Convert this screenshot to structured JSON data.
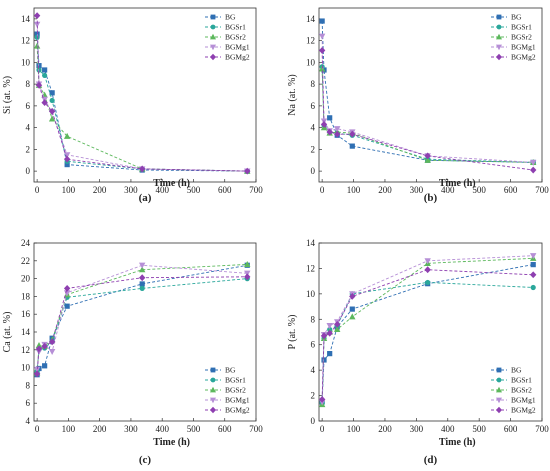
{
  "figure": {
    "panels": [
      {
        "id": "a",
        "label": "(a)"
      },
      {
        "id": "b",
        "label": "(b)"
      },
      {
        "id": "c",
        "label": "(c)"
      },
      {
        "id": "d",
        "label": "(d)"
      }
    ]
  },
  "chart_data": [
    {
      "type": "line",
      "panel": "(a)",
      "xlabel": "Time (h)",
      "ylabel": "Si (at. %)",
      "xlim": [
        -10,
        700
      ],
      "ylim": [
        -1,
        15
      ],
      "xticks": [
        0,
        100,
        200,
        300,
        400,
        500,
        600,
        700
      ],
      "yticks": [
        0,
        2,
        4,
        6,
        8,
        10,
        12,
        14
      ],
      "legend_position": "top-right",
      "grid": false,
      "series": [
        {
          "name": "BG",
          "color": "#2f6fb3",
          "marker": "square",
          "points": [
            [
              0,
              12.6
            ],
            [
              6,
              9.7
            ],
            [
              24,
              9.3
            ],
            [
              48,
              7.2
            ],
            [
              96,
              0.6
            ],
            [
              336,
              0.1
            ],
            [
              672,
              0.0
            ]
          ]
        },
        {
          "name": "BGSr1",
          "color": "#2aa79b",
          "marker": "circle",
          "points": [
            [
              0,
              12.3
            ],
            [
              6,
              9.3
            ],
            [
              24,
              8.8
            ],
            [
              48,
              6.5
            ],
            [
              96,
              0.9
            ],
            [
              336,
              0.2
            ],
            [
              672,
              0.0
            ]
          ]
        },
        {
          "name": "BGSr2",
          "color": "#5cb85c",
          "marker": "triangle-up",
          "points": [
            [
              0,
              11.5
            ],
            [
              6,
              7.9
            ],
            [
              24,
              7.0
            ],
            [
              48,
              4.8
            ],
            [
              96,
              3.2
            ],
            [
              336,
              0.2
            ],
            [
              672,
              0.0
            ]
          ]
        },
        {
          "name": "BGMg1",
          "color": "#b68fd6",
          "marker": "triangle-down",
          "points": [
            [
              0,
              13.5
            ],
            [
              6,
              8.0
            ],
            [
              24,
              6.6
            ],
            [
              48,
              5.4
            ],
            [
              96,
              1.5
            ],
            [
              336,
              0.2
            ],
            [
              672,
              0.0
            ]
          ]
        },
        {
          "name": "BGMg2",
          "color": "#8e3fb0",
          "marker": "diamond",
          "points": [
            [
              0,
              14.3
            ],
            [
              6,
              7.9
            ],
            [
              24,
              6.3
            ],
            [
              48,
              5.5
            ],
            [
              96,
              1.1
            ],
            [
              336,
              0.2
            ],
            [
              672,
              0.0
            ]
          ]
        }
      ]
    },
    {
      "type": "line",
      "panel": "(b)",
      "xlabel": "Time (h)",
      "ylabel": "Na (at. %)",
      "xlim": [
        -10,
        700
      ],
      "ylim": [
        -1,
        15
      ],
      "xticks": [
        0,
        100,
        200,
        300,
        400,
        500,
        600,
        700
      ],
      "yticks": [
        0,
        2,
        4,
        6,
        8,
        10,
        12,
        14
      ],
      "legend_position": "top-right",
      "grid": false,
      "series": [
        {
          "name": "BG",
          "color": "#2f6fb3",
          "marker": "square",
          "points": [
            [
              0,
              13.8
            ],
            [
              6,
              9.3
            ],
            [
              24,
              4.9
            ],
            [
              48,
              3.3
            ],
            [
              96,
              2.3
            ],
            [
              336,
              1.0
            ],
            [
              672,
              0.8
            ]
          ]
        },
        {
          "name": "BGSr1",
          "color": "#2aa79b",
          "marker": "circle",
          "points": [
            [
              0,
              9.6
            ],
            [
              6,
              4.2
            ],
            [
              24,
              3.6
            ],
            [
              48,
              3.5
            ],
            [
              96,
              3.3
            ],
            [
              336,
              1.1
            ],
            [
              672,
              0.8
            ]
          ]
        },
        {
          "name": "BGSr2",
          "color": "#5cb85c",
          "marker": "triangle-up",
          "points": [
            [
              0,
              9.4
            ],
            [
              6,
              4.0
            ],
            [
              24,
              3.5
            ],
            [
              48,
              3.6
            ],
            [
              96,
              3.5
            ],
            [
              336,
              1.0
            ],
            [
              672,
              0.8
            ]
          ]
        },
        {
          "name": "BGMg1",
          "color": "#b68fd6",
          "marker": "triangle-down",
          "points": [
            [
              0,
              12.4
            ],
            [
              6,
              4.6
            ],
            [
              24,
              3.7
            ],
            [
              48,
              3.9
            ],
            [
              96,
              3.6
            ],
            [
              336,
              1.4
            ],
            [
              672,
              0.8
            ]
          ]
        },
        {
          "name": "BGMg2",
          "color": "#8e3fb0",
          "marker": "diamond",
          "points": [
            [
              0,
              11.1
            ],
            [
              6,
              4.3
            ],
            [
              24,
              3.6
            ],
            [
              48,
              3.4
            ],
            [
              96,
              3.4
            ],
            [
              336,
              1.4
            ],
            [
              672,
              0.1
            ]
          ]
        }
      ]
    },
    {
      "type": "line",
      "panel": "(c)",
      "xlabel": "Time (h)",
      "ylabel": "Ca (at. %)",
      "xlim": [
        -10,
        700
      ],
      "ylim": [
        4,
        24
      ],
      "xticks": [
        0,
        100,
        200,
        300,
        400,
        500,
        600,
        700
      ],
      "yticks": [
        4,
        6,
        8,
        10,
        12,
        14,
        16,
        18,
        20,
        22,
        24
      ],
      "legend_position": "bottom-right",
      "grid": false,
      "series": [
        {
          "name": "BG",
          "color": "#2f6fb3",
          "marker": "square",
          "points": [
            [
              0,
              9.2
            ],
            [
              6,
              9.9
            ],
            [
              24,
              10.2
            ],
            [
              48,
              13.3
            ],
            [
              96,
              16.9
            ],
            [
              336,
              19.4
            ],
            [
              672,
              21.5
            ]
          ]
        },
        {
          "name": "BGSr1",
          "color": "#2aa79b",
          "marker": "circle",
          "points": [
            [
              0,
              9.6
            ],
            [
              6,
              12.0
            ],
            [
              24,
              12.2
            ],
            [
              48,
              12.9
            ],
            [
              96,
              17.9
            ],
            [
              336,
              18.9
            ],
            [
              672,
              20.0
            ]
          ]
        },
        {
          "name": "BGSr2",
          "color": "#5cb85c",
          "marker": "triangle-up",
          "points": [
            [
              0,
              9.4
            ],
            [
              6,
              12.5
            ],
            [
              24,
              12.4
            ],
            [
              48,
              13.1
            ],
            [
              96,
              18.2
            ],
            [
              336,
              21.0
            ],
            [
              672,
              21.6
            ]
          ]
        },
        {
          "name": "BGMg1",
          "color": "#b68fd6",
          "marker": "triangle-down",
          "points": [
            [
              0,
              9.8
            ],
            [
              6,
              11.8
            ],
            [
              24,
              12.6
            ],
            [
              48,
              11.8
            ],
            [
              96,
              18.4
            ],
            [
              336,
              21.5
            ],
            [
              672,
              20.6
            ]
          ]
        },
        {
          "name": "BGMg2",
          "color": "#8e3fb0",
          "marker": "diamond",
          "points": [
            [
              0,
              9.3
            ],
            [
              6,
              12.1
            ],
            [
              24,
              12.4
            ],
            [
              48,
              12.9
            ],
            [
              96,
              18.9
            ],
            [
              336,
              20.1
            ],
            [
              672,
              20.2
            ]
          ]
        }
      ]
    },
    {
      "type": "line",
      "panel": "(d)",
      "xlabel": "Time (h)",
      "ylabel": "P (at. %)",
      "xlim": [
        -10,
        700
      ],
      "ylim": [
        0,
        14
      ],
      "xticks": [
        0,
        100,
        200,
        300,
        400,
        500,
        600,
        700
      ],
      "yticks": [
        0,
        2,
        4,
        6,
        8,
        10,
        12,
        14
      ],
      "legend_position": "bottom-right",
      "grid": false,
      "series": [
        {
          "name": "BG",
          "color": "#2f6fb3",
          "marker": "square",
          "points": [
            [
              0,
              1.5
            ],
            [
              6,
              4.8
            ],
            [
              24,
              5.3
            ],
            [
              48,
              7.4
            ],
            [
              96,
              8.8
            ],
            [
              336,
              10.8
            ],
            [
              672,
              12.3
            ]
          ]
        },
        {
          "name": "BGSr1",
          "color": "#2aa79b",
          "marker": "circle",
          "points": [
            [
              0,
              1.4
            ],
            [
              6,
              6.5
            ],
            [
              24,
              7.2
            ],
            [
              48,
              7.5
            ],
            [
              96,
              10.0
            ],
            [
              336,
              10.9
            ],
            [
              672,
              10.5
            ]
          ]
        },
        {
          "name": "BGSr2",
          "color": "#5cb85c",
          "marker": "triangle-up",
          "points": [
            [
              0,
              1.3
            ],
            [
              6,
              6.5
            ],
            [
              24,
              7.0
            ],
            [
              48,
              7.2
            ],
            [
              96,
              8.2
            ],
            [
              336,
              12.4
            ],
            [
              672,
              12.8
            ]
          ]
        },
        {
          "name": "BGMg1",
          "color": "#b68fd6",
          "marker": "triangle-down",
          "points": [
            [
              0,
              1.5
            ],
            [
              6,
              6.8
            ],
            [
              24,
              7.5
            ],
            [
              48,
              7.8
            ],
            [
              96,
              10.0
            ],
            [
              336,
              12.6
            ],
            [
              672,
              13.0
            ]
          ]
        },
        {
          "name": "BGMg2",
          "color": "#8e3fb0",
          "marker": "diamond",
          "points": [
            [
              0,
              1.7
            ],
            [
              6,
              6.7
            ],
            [
              24,
              6.9
            ],
            [
              48,
              7.6
            ],
            [
              96,
              9.8
            ],
            [
              336,
              11.9
            ],
            [
              672,
              11.5
            ]
          ]
        }
      ]
    }
  ]
}
